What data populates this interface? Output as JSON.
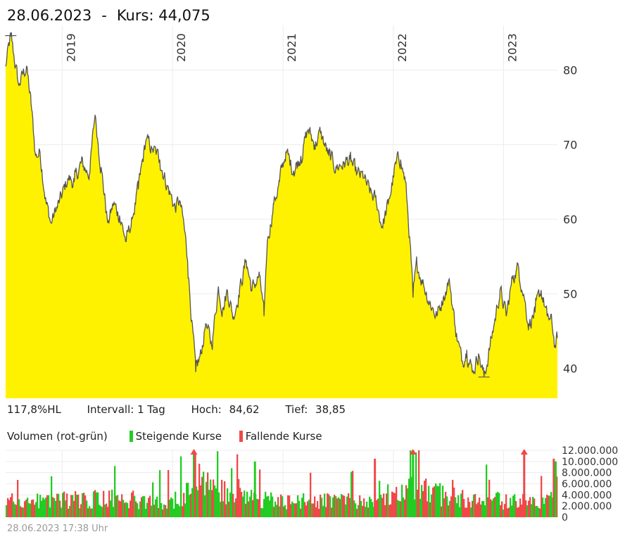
{
  "header": {
    "date": "28.06.2023",
    "separator": "-",
    "kurs_label": "Kurs:",
    "kurs_value": "44,075"
  },
  "info": {
    "range_pct": "117,8%HL",
    "interval_label": "Intervall:",
    "interval_value": "1 Tag",
    "high_label": "Hoch:",
    "high_value": "84,62",
    "low_label": "Tief:",
    "low_value": "38,85"
  },
  "volume_legend": {
    "title": "Volumen (rot-grün)",
    "rising": "Steigende Kurse",
    "falling": "Fallende Kurse",
    "rising_color": "#22cc22",
    "falling_color": "#f04848"
  },
  "footer": {
    "timestamp": "28.06.2023 17:38 Uhr"
  },
  "chart_data": [
    {
      "type": "area",
      "fill_color": "#fff200",
      "line_color": "#555555",
      "ylim": [
        36,
        86
      ],
      "xlim": [
        "2018-06-28",
        "2023-06-28"
      ],
      "yticks": [
        40,
        50,
        60,
        70,
        80
      ],
      "year_labels": [
        {
          "label": "2019",
          "date": "2019-01-01"
        },
        {
          "label": "2020",
          "date": "2020-01-01"
        },
        {
          "label": "2021",
          "date": "2021-01-01"
        },
        {
          "label": "2022",
          "date": "2022-01-01"
        },
        {
          "label": "2023",
          "date": "2023-01-01"
        }
      ],
      "points": [
        [
          "2018-06-28",
          80.5
        ],
        [
          "2018-07-15",
          84.5
        ],
        [
          "2018-08-10",
          78.0
        ],
        [
          "2018-09-05",
          80.5
        ],
        [
          "2018-09-20",
          75.5
        ],
        [
          "2018-10-05",
          68.5
        ],
        [
          "2018-10-20",
          69.0
        ],
        [
          "2018-11-10",
          62.0
        ],
        [
          "2018-11-25",
          59.5
        ],
        [
          "2018-12-10",
          61.0
        ],
        [
          "2018-12-31",
          63.0
        ],
        [
          "2019-01-20",
          65.5
        ],
        [
          "2019-02-10",
          65.0
        ],
        [
          "2019-03-05",
          67.5
        ],
        [
          "2019-04-01",
          66.0
        ],
        [
          "2019-04-20",
          74.0
        ],
        [
          "2019-05-10",
          67.0
        ],
        [
          "2019-06-01",
          59.5
        ],
        [
          "2019-06-20",
          62.0
        ],
        [
          "2019-07-10",
          60.5
        ],
        [
          "2019-08-01",
          57.0
        ],
        [
          "2019-08-20",
          60.0
        ],
        [
          "2019-09-10",
          64.0
        ],
        [
          "2019-10-05",
          70.5
        ],
        [
          "2019-10-25",
          69.5
        ],
        [
          "2019-11-20",
          68.0
        ],
        [
          "2019-12-15",
          64.5
        ],
        [
          "2020-01-10",
          61.5
        ],
        [
          "2020-01-25",
          62.5
        ],
        [
          "2020-02-10",
          58.5
        ],
        [
          "2020-02-20",
          54.5
        ],
        [
          "2020-03-05",
          46.5
        ],
        [
          "2020-03-18",
          39.5
        ],
        [
          "2020-04-05",
          42.0
        ],
        [
          "2020-04-20",
          46.0
        ],
        [
          "2020-05-10",
          43.0
        ],
        [
          "2020-06-01",
          51.0
        ],
        [
          "2020-06-15",
          48.0
        ],
        [
          "2020-07-01",
          50.5
        ],
        [
          "2020-07-20",
          47.0
        ],
        [
          "2020-08-10",
          50.5
        ],
        [
          "2020-09-01",
          54.5
        ],
        [
          "2020-09-20",
          50.5
        ],
        [
          "2020-10-15",
          52.5
        ],
        [
          "2020-10-30",
          47.0
        ],
        [
          "2020-11-10",
          57.0
        ],
        [
          "2020-12-01",
          62.0
        ],
        [
          "2020-12-20",
          65.0
        ],
        [
          "2021-01-10",
          69.0
        ],
        [
          "2021-02-05",
          66.5
        ],
        [
          "2021-03-01",
          68.5
        ],
        [
          "2021-03-25",
          72.0
        ],
        [
          "2021-04-15",
          70.0
        ],
        [
          "2021-05-05",
          71.5
        ],
        [
          "2021-06-01",
          68.5
        ],
        [
          "2021-06-25",
          67.0
        ],
        [
          "2021-07-20",
          67.5
        ],
        [
          "2021-08-10",
          68.0
        ],
        [
          "2021-09-01",
          66.0
        ],
        [
          "2021-09-25",
          65.5
        ],
        [
          "2021-10-15",
          63.5
        ],
        [
          "2021-11-05",
          62.5
        ],
        [
          "2021-11-25",
          59.0
        ],
        [
          "2021-12-15",
          62.0
        ],
        [
          "2022-01-10",
          67.5
        ],
        [
          "2022-01-25",
          68.0
        ],
        [
          "2022-02-10",
          65.0
        ],
        [
          "2022-02-25",
          57.0
        ],
        [
          "2022-03-07",
          49.5
        ],
        [
          "2022-03-20",
          54.0
        ],
        [
          "2022-04-10",
          51.5
        ],
        [
          "2022-05-01",
          49.0
        ],
        [
          "2022-05-25",
          47.0
        ],
        [
          "2022-06-15",
          49.5
        ],
        [
          "2022-07-05",
          52.0
        ],
        [
          "2022-07-25",
          45.5
        ],
        [
          "2022-08-15",
          41.0
        ],
        [
          "2022-09-01",
          42.5
        ],
        [
          "2022-09-20",
          39.5
        ],
        [
          "2022-10-10",
          42.0
        ],
        [
          "2022-10-28",
          38.9
        ],
        [
          "2022-11-15",
          42.5
        ],
        [
          "2022-12-01",
          46.0
        ],
        [
          "2022-12-20",
          50.5
        ],
        [
          "2023-01-10",
          47.0
        ],
        [
          "2023-02-01",
          52.5
        ],
        [
          "2023-02-20",
          53.5
        ],
        [
          "2023-03-10",
          49.5
        ],
        [
          "2023-03-25",
          46.0
        ],
        [
          "2023-04-15",
          47.5
        ],
        [
          "2023-05-05",
          50.5
        ],
        [
          "2023-05-25",
          47.0
        ],
        [
          "2023-06-10",
          46.0
        ],
        [
          "2023-06-20",
          43.0
        ],
        [
          "2023-06-28",
          44.075
        ]
      ],
      "high_marker": {
        "date": "2018-07-15",
        "value": 84.62
      },
      "low_marker": {
        "date": "2022-10-28",
        "value": 38.85
      }
    },
    {
      "type": "bar",
      "ylim": [
        0,
        12000000
      ],
      "yticks": [
        {
          "value": 0,
          "label": "0"
        },
        {
          "value": 2000000,
          "label": "2.000.000"
        },
        {
          "value": 4000000,
          "label": "4.000.000"
        },
        {
          "value": 6000000,
          "label": "6.000.000"
        },
        {
          "value": 8000000,
          "label": "8.000.000"
        },
        {
          "value": 10000000,
          "label": "10.000.000"
        },
        {
          "value": 12000000,
          "label": "12.000.000"
        }
      ],
      "profile": [
        [
          "2018-06-28",
          3000000
        ],
        [
          "2019-01-01",
          3200000
        ],
        [
          "2019-06-01",
          3500000
        ],
        [
          "2020-01-01",
          3000000
        ],
        [
          "2020-02-20",
          5000000
        ],
        [
          "2020-03-15",
          8500000
        ],
        [
          "2020-04-15",
          6000000
        ],
        [
          "2020-07-01",
          4500000
        ],
        [
          "2020-10-01",
          3500000
        ],
        [
          "2021-01-01",
          3000000
        ],
        [
          "2021-06-01",
          3000000
        ],
        [
          "2021-12-01",
          3200000
        ],
        [
          "2022-02-15",
          4500000
        ],
        [
          "2022-03-07",
          7500000
        ],
        [
          "2022-04-01",
          5000000
        ],
        [
          "2022-07-01",
          4000000
        ],
        [
          "2022-11-01",
          3500000
        ],
        [
          "2023-01-01",
          3000000
        ],
        [
          "2023-06-28",
          3200000
        ]
      ],
      "spikes": [
        {
          "date": "2020-03-12",
          "value": 12000000,
          "arrow": true,
          "rising": true
        },
        {
          "date": "2020-03-16",
          "value": 11500000,
          "arrow": false,
          "rising": false
        },
        {
          "date": "2022-03-07",
          "value": 12000000,
          "arrow": true,
          "rising": true
        },
        {
          "date": "2023-03-10",
          "value": 12000000,
          "arrow": true,
          "rising": false
        },
        {
          "date": "2021-11-01",
          "value": 10500000,
          "arrow": false,
          "rising": false
        },
        {
          "date": "2023-06-16",
          "value": 10500000,
          "arrow": false,
          "rising": false
        },
        {
          "date": "2023-06-22",
          "value": 10000000,
          "arrow": false,
          "rising": true
        },
        {
          "date": "2020-09-30",
          "value": 10000000,
          "arrow": false,
          "rising": true
        }
      ]
    }
  ]
}
